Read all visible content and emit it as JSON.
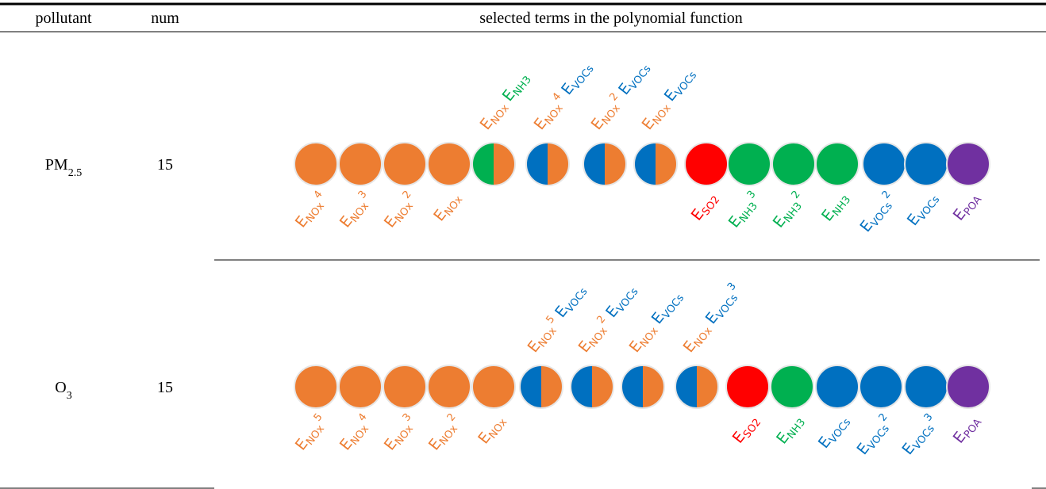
{
  "table": {
    "headers": [
      "pollutant",
      "num",
      "selected terms in the polynomial function"
    ],
    "rows": [
      {
        "pollutant": {
          "text": "PM",
          "sub": "2.5"
        },
        "num": 15,
        "terms": [
          [
            {
              "base": "E",
              "sub": "NOx",
              "sup": 4,
              "color": "#ED7D31"
            }
          ],
          [
            {
              "base": "E",
              "sub": "NOx",
              "sup": 3,
              "color": "#ED7D31"
            }
          ],
          [
            {
              "base": "E",
              "sub": "NOx",
              "sup": 2,
              "color": "#ED7D31"
            }
          ],
          [
            {
              "base": "E",
              "sub": "NOx",
              "color": "#ED7D31"
            }
          ],
          [
            {
              "base": "E",
              "sub": "NOx",
              "color": "#ED7D31"
            },
            {
              "base": "E",
              "sub": "NH3",
              "color": "#00B050"
            }
          ],
          [
            {
              "base": "E",
              "sub": "NOx",
              "sup": 4,
              "color": "#ED7D31"
            },
            {
              "base": "E",
              "sub": "VOCs",
              "color": "#0070C0"
            }
          ],
          [
            {
              "base": "E",
              "sub": "NOx",
              "sup": 2,
              "color": "#ED7D31"
            },
            {
              "base": "E",
              "sub": "VOCs",
              "color": "#0070C0"
            }
          ],
          [
            {
              "base": "E",
              "sub": "NOx",
              "color": "#ED7D31"
            },
            {
              "base": "E",
              "sub": "VOCs",
              "color": "#0070C0"
            }
          ],
          [
            {
              "base": "E",
              "sub": "SO2",
              "color": "#FF0000"
            }
          ],
          [
            {
              "base": "E",
              "sub": "NH3",
              "sup": 3,
              "color": "#00B050"
            }
          ],
          [
            {
              "base": "E",
              "sub": "NH3",
              "sup": 2,
              "color": "#00B050"
            }
          ],
          [
            {
              "base": "E",
              "sub": "NH3",
              "color": "#00B050"
            }
          ],
          [
            {
              "base": "E",
              "sub": "VOCs",
              "sup": 2,
              "color": "#0070C0"
            }
          ],
          [
            {
              "base": "E",
              "sub": "VOCs",
              "color": "#0070C0"
            }
          ],
          [
            {
              "base": "E",
              "sub": "POA",
              "color": "#7030A0"
            }
          ]
        ]
      },
      {
        "pollutant": {
          "text": "O",
          "sub": "3"
        },
        "num": 15,
        "terms": [
          [
            {
              "base": "E",
              "sub": "NOx",
              "sup": 5,
              "color": "#ED7D31"
            }
          ],
          [
            {
              "base": "E",
              "sub": "NOx",
              "sup": 4,
              "color": "#ED7D31"
            }
          ],
          [
            {
              "base": "E",
              "sub": "NOx",
              "sup": 3,
              "color": "#ED7D31"
            }
          ],
          [
            {
              "base": "E",
              "sub": "NOx",
              "sup": 2,
              "color": "#ED7D31"
            }
          ],
          [
            {
              "base": "E",
              "sub": "NOx",
              "color": "#ED7D31"
            }
          ],
          [
            {
              "base": "E",
              "sub": "NOx",
              "sup": 5,
              "color": "#ED7D31"
            },
            {
              "base": "E",
              "sub": "VOCs",
              "color": "#0070C0"
            }
          ],
          [
            {
              "base": "E",
              "sub": "NOx",
              "sup": 2,
              "color": "#ED7D31"
            },
            {
              "base": "E",
              "sub": "VOCs",
              "color": "#0070C0"
            }
          ],
          [
            {
              "base": "E",
              "sub": "NOx",
              "color": "#ED7D31"
            },
            {
              "base": "E",
              "sub": "VOCs",
              "color": "#0070C0"
            }
          ],
          [
            {
              "base": "E",
              "sub": "NOx",
              "color": "#ED7D31"
            },
            {
              "base": "E",
              "sub": "VOCs",
              "sup": 3,
              "color": "#0070C0"
            }
          ],
          [
            {
              "base": "E",
              "sub": "SO2",
              "color": "#FF0000"
            }
          ],
          [
            {
              "base": "E",
              "sub": "NH3",
              "color": "#00B050"
            }
          ],
          [
            {
              "base": "E",
              "sub": "VOCs",
              "color": "#0070C0"
            }
          ],
          [
            {
              "base": "E",
              "sub": "VOCs",
              "sup": 2,
              "color": "#0070C0"
            }
          ],
          [
            {
              "base": "E",
              "sub": "VOCs",
              "sup": 3,
              "color": "#0070C0"
            }
          ],
          [
            {
              "base": "E",
              "sub": "POA",
              "color": "#7030A0"
            }
          ]
        ]
      }
    ]
  }
}
